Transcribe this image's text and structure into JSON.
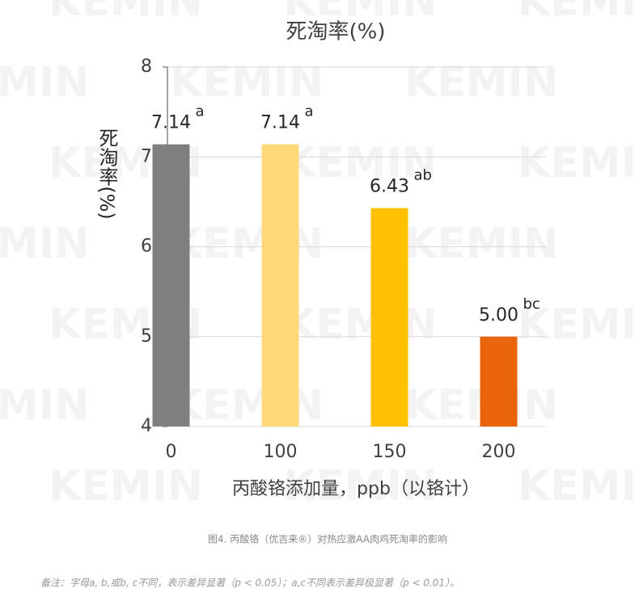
{
  "watermark": "KEMIN",
  "chart_data": {
    "type": "bar",
    "title": "死淘率(%)",
    "y_label": "死淘率(%)",
    "x_label": "丙酸铬添加量，ppb（以铬计）",
    "categories": [
      "0",
      "100",
      "150",
      "200"
    ],
    "values": [
      7.14,
      7.14,
      6.43,
      5.0
    ],
    "value_labels": [
      "7.14",
      "7.14",
      "6.43",
      "5.00"
    ],
    "significance": [
      "a",
      "a",
      "ab",
      "bc"
    ],
    "colors": [
      "#7f7f7f",
      "#ffd97a",
      "#ffc000",
      "#e8650c"
    ],
    "ylim": [
      4,
      8
    ],
    "yticks": [
      4,
      5,
      6,
      7,
      8
    ],
    "grid": true
  },
  "caption": "图4. 丙酸铬（优吉来®）对热应激AA肉鸡死淘率的影响",
  "note": "备注：字母a, b,或b, c不同，表示差异显著（p < 0.05）；a,c不同表示差异极显著（p < 0.01）。"
}
